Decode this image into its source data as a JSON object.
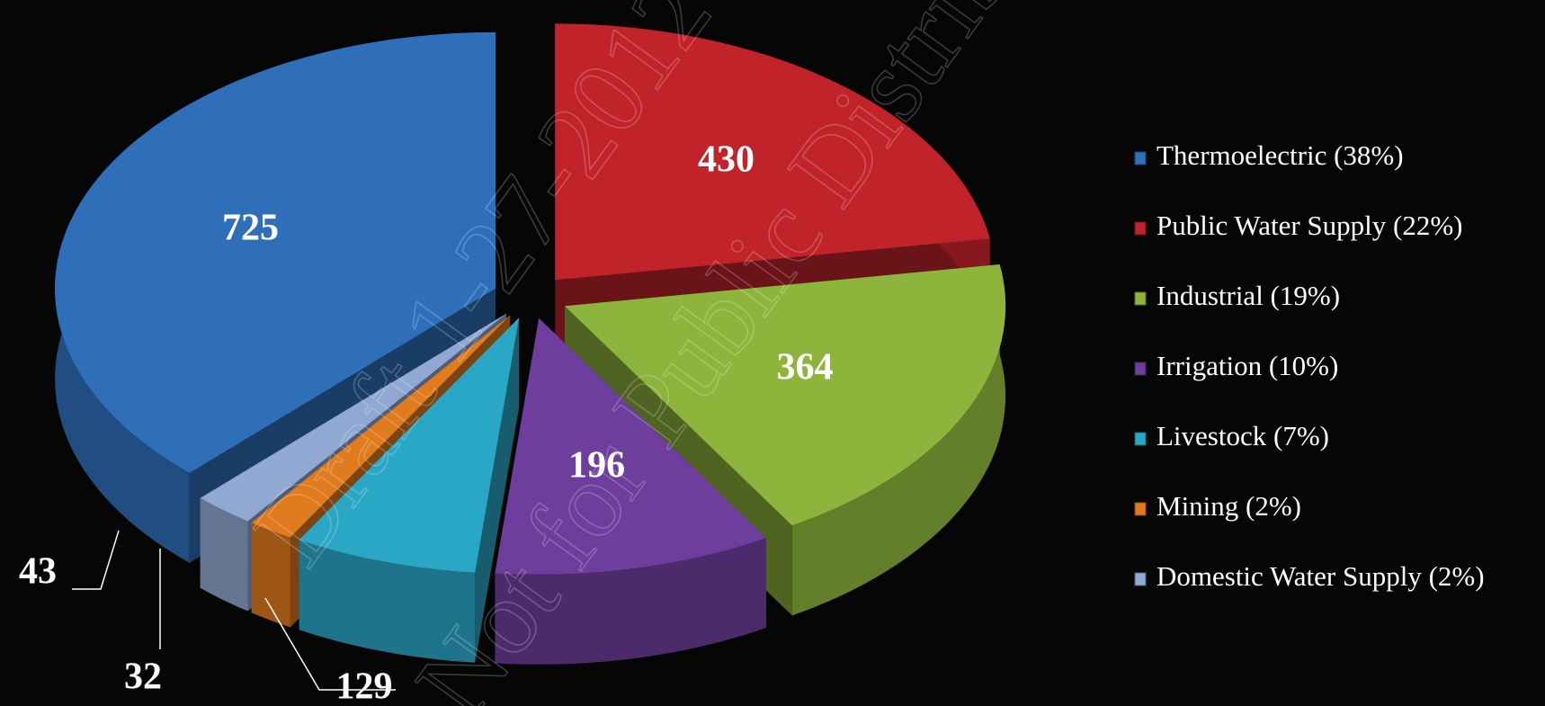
{
  "chart_data": {
    "type": "pie3d",
    "categories": [
      "Thermoelectric (38%)",
      "Public Water Supply (22%)",
      "Industrial (19%)",
      "Irrigation (10%)",
      "Livestock (7%)",
      "Mining (2%)",
      "Domestic Water Supply (2%)"
    ],
    "values": [
      725,
      430,
      364,
      196,
      129,
      32,
      43
    ],
    "colors": [
      "#2f6fba",
      "#c1232b",
      "#8db53b",
      "#6d3e9b",
      "#2ba7c6",
      "#e07b1e",
      "#90a8d2"
    ],
    "legend": "right",
    "watermark": [
      "Draft 1-27-2012",
      "Not for Public Distribution"
    ]
  }
}
